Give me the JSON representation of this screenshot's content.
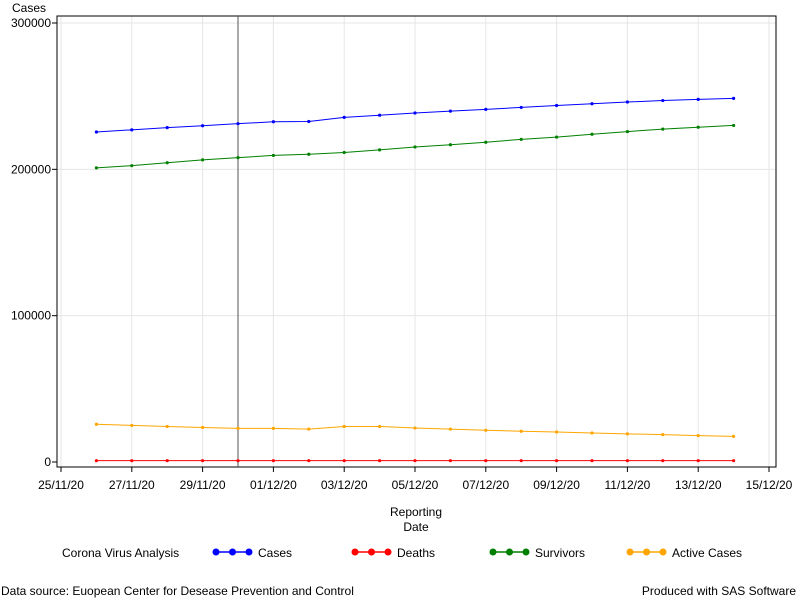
{
  "chart_data": {
    "type": "line",
    "ylabel": "Cases",
    "xlabel_lines": [
      "Reporting",
      "Date"
    ],
    "ylim": [
      0,
      300000
    ],
    "y_ticks": [
      0,
      100000,
      200000,
      300000
    ],
    "y_tick_labels": [
      "0",
      "100000",
      "200000",
      "300000"
    ],
    "x_ticks": [
      "25/11/20",
      "27/11/20",
      "29/11/20",
      "01/12/20",
      "03/12/20",
      "05/12/20",
      "07/12/20",
      "09/12/20",
      "11/12/20",
      "13/12/20",
      "15/12/20"
    ],
    "x": [
      "26/11/20",
      "27/11/20",
      "28/11/20",
      "29/11/20",
      "30/11/20",
      "01/12/20",
      "02/12/20",
      "03/12/20",
      "04/12/20",
      "05/12/20",
      "06/12/20",
      "07/12/20",
      "08/12/20",
      "09/12/20",
      "10/12/20",
      "11/12/20",
      "12/12/20",
      "13/12/20",
      "14/12/20"
    ],
    "reference_line_x": "30/11/20",
    "grid": true,
    "series": [
      {
        "name": "Cases",
        "color": "#0000ff",
        "values": [
          225500,
          227000,
          228500,
          229800,
          231200,
          232500,
          232700,
          235500,
          237000,
          238500,
          239800,
          241000,
          242300,
          243600,
          244800,
          246000,
          247000,
          247800,
          248500
        ]
      },
      {
        "name": "Deaths",
        "color": "#ff0000",
        "values": [
          900,
          900,
          900,
          900,
          900,
          900,
          900,
          900,
          900,
          900,
          900,
          900,
          900,
          900,
          900,
          900,
          900,
          900,
          900
        ]
      },
      {
        "name": "Survivors",
        "color": "#008000",
        "values": [
          201000,
          202500,
          204500,
          206500,
          208000,
          209500,
          210300,
          211500,
          213300,
          215300,
          216800,
          218500,
          220500,
          222000,
          224000,
          225800,
          227500,
          228800,
          230000
        ]
      },
      {
        "name": "Active Cases",
        "color": "#ffa500",
        "values": [
          25800,
          25000,
          24300,
          23600,
          23000,
          23000,
          22500,
          24300,
          24300,
          23200,
          22500,
          21700,
          21000,
          20500,
          19800,
          19200,
          18700,
          18000,
          17500
        ]
      }
    ],
    "legend_title": "Corona Virus Analysis",
    "legend_position": "bottom"
  },
  "footnotes": {
    "left": "Data source: Euopean Center for Desease Prevention and Control",
    "right": "Produced with SAS Software"
  }
}
